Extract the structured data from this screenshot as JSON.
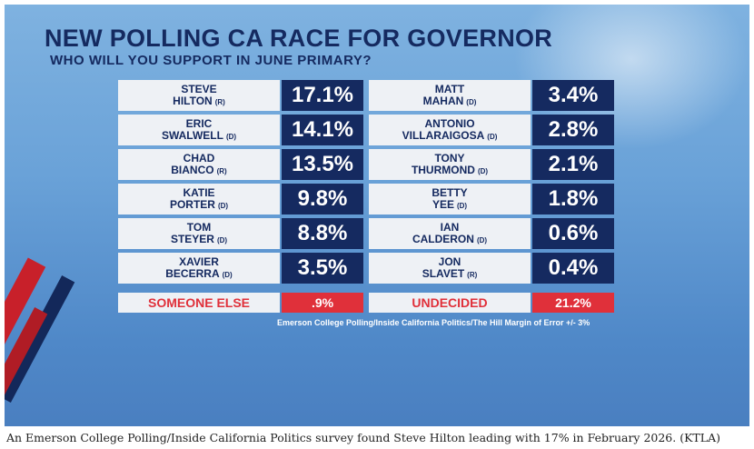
{
  "title": "NEW POLLING CA RACE FOR GOVERNOR",
  "subtitle": "WHO WILL YOU SUPPORT IN JUNE PRIMARY?",
  "left_candidates": [
    {
      "first": "STEVE",
      "last": "HILTON",
      "party": "(R)",
      "pct": "17.1%"
    },
    {
      "first": "ERIC",
      "last": "SWALWELL",
      "party": "(D)",
      "pct": "14.1%"
    },
    {
      "first": "CHAD",
      "last": "BIANCO",
      "party": "(R)",
      "pct": "13.5%"
    },
    {
      "first": "KATIE",
      "last": "PORTER",
      "party": "(D)",
      "pct": "9.8%"
    },
    {
      "first": "TOM",
      "last": "STEYER",
      "party": "(D)",
      "pct": "8.8%"
    },
    {
      "first": "XAVIER",
      "last": "BECERRA",
      "party": "(D)",
      "pct": "3.5%"
    }
  ],
  "right_candidates": [
    {
      "first": "MATT",
      "last": "MAHAN",
      "party": "(D)",
      "pct": "3.4%"
    },
    {
      "first": "ANTONIO",
      "last": "VILLARAIGOSA",
      "party": "(D)",
      "pct": "2.8%"
    },
    {
      "first": "TONY",
      "last": "THURMOND",
      "party": "(D)",
      "pct": "2.1%"
    },
    {
      "first": "BETTY",
      "last": "YEE",
      "party": "(D)",
      "pct": "1.8%"
    },
    {
      "first": "IAN",
      "last": "CALDERON",
      "party": "(D)",
      "pct": "0.6%"
    },
    {
      "first": "JON",
      "last": "SLAVET",
      "party": "(R)",
      "pct": "0.4%"
    }
  ],
  "someone_else": {
    "label": "SOMEONE ELSE",
    "value": ".9%"
  },
  "undecided": {
    "label": "UNDECIDED",
    "value": "21.2%"
  },
  "source": "Emerson College Polling/Inside California Politics/The Hill Margin of Error +/- 3%",
  "caption": "An Emerson College Polling/Inside California Politics survey found Steve Hilton leading with 17% in February 2026. (KTLA)",
  "colors": {
    "navy": "#152a60",
    "red": "#e0303a",
    "panel": "#eef1f5"
  }
}
